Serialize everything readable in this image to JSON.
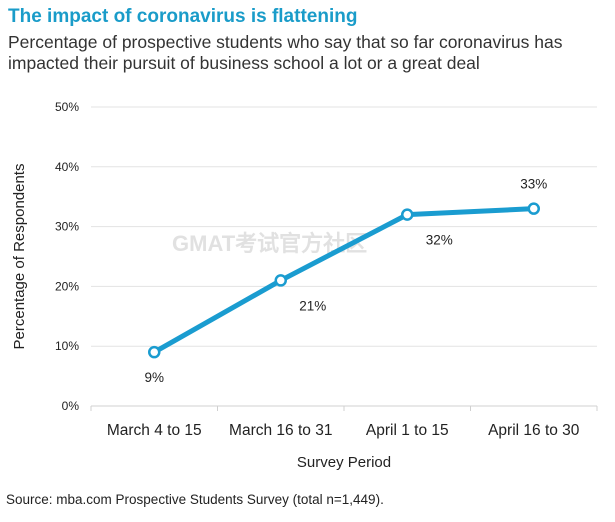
{
  "title": "The impact of coronavirus is flattening",
  "subtitle": "Percentage of prospective students who say that so far coronavirus has impacted their pursuit of business school a lot or a great deal",
  "source": "Source: mba.com Prospective Students Survey (total n=1,449).",
  "watermark": "GMAT考试官方社区",
  "chart_data": {
    "type": "line",
    "categories": [
      "March 4 to 15",
      "March 16 to 31",
      "April 1 to 15",
      "April 16 to 30"
    ],
    "values": [
      9,
      21,
      32,
      33
    ],
    "data_labels": [
      "9%",
      "21%",
      "32%",
      "33%"
    ],
    "xlabel": "Survey Period",
    "ylabel": "Percentage of Respondents",
    "ylim": [
      0,
      50
    ],
    "yticks": [
      0,
      10,
      20,
      30,
      40,
      50
    ],
    "ytick_labels": [
      "0%",
      "10%",
      "20%",
      "30%",
      "40%",
      "50%"
    ],
    "grid": true,
    "line_color": "#1a9cd0",
    "marker": "hollow-circle"
  }
}
